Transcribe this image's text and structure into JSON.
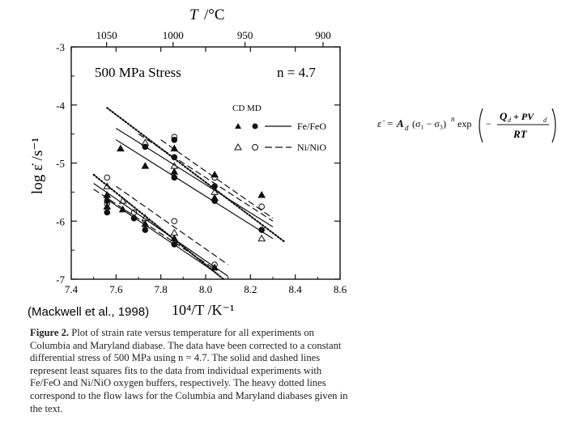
{
  "top_axis": {
    "label_T": "T",
    "label_unit": "/°C",
    "ticks": [
      "1050",
      "1000",
      "950",
      "900"
    ],
    "tick_values": [
      1050,
      1000,
      950,
      900
    ]
  },
  "chart_data": {
    "type": "scatter",
    "title": "500 MPa Stress",
    "annotation": "n = 4.7",
    "xlabel": "10⁴/T /K⁻¹",
    "ylabel": "log ε̇ /s⁻¹",
    "xlim": [
      7.4,
      8.6
    ],
    "ylim": [
      -7,
      -3
    ],
    "x_ticks": [
      "7.4",
      "7.6",
      "7.8",
      "8.0",
      "8.2",
      "8.4",
      "8.6"
    ],
    "y_ticks": [
      "-3",
      "-4",
      "-5",
      "-6",
      "-7"
    ],
    "legend": {
      "header": "CD MD",
      "entries": [
        "Fe/FeO",
        "Ni/NiO"
      ]
    },
    "series": [
      {
        "name": "Fe/FeO",
        "marker": "filled",
        "points": [
          [
            7.62,
            -4.75
          ],
          [
            7.73,
            -4.72
          ],
          [
            7.73,
            -5.05
          ],
          [
            7.86,
            -4.6
          ],
          [
            7.86,
            -4.75
          ],
          [
            7.86,
            -4.9
          ],
          [
            7.86,
            -5.15
          ],
          [
            7.86,
            -5.25
          ],
          [
            8.04,
            -5.2
          ],
          [
            8.04,
            -5.4
          ],
          [
            8.04,
            -5.6
          ],
          [
            8.04,
            -5.65
          ],
          [
            8.25,
            -5.55
          ],
          [
            8.25,
            -6.15
          ],
          [
            7.56,
            -5.55
          ],
          [
            7.56,
            -5.65
          ],
          [
            7.56,
            -5.75
          ],
          [
            7.56,
            -5.85
          ],
          [
            7.63,
            -5.8
          ],
          [
            7.68,
            -5.95
          ],
          [
            7.73,
            -6.05
          ],
          [
            7.73,
            -6.15
          ],
          [
            7.86,
            -6.3
          ],
          [
            7.86,
            -6.4
          ],
          [
            8.04,
            -6.8
          ]
        ]
      },
      {
        "name": "Ni/NiO",
        "marker": "open",
        "points": [
          [
            7.73,
            -4.65
          ],
          [
            7.86,
            -4.55
          ],
          [
            7.86,
            -5.05
          ],
          [
            8.04,
            -5.25
          ],
          [
            8.04,
            -5.5
          ],
          [
            8.25,
            -5.75
          ],
          [
            8.25,
            -6.3
          ],
          [
            7.56,
            -5.25
          ],
          [
            7.56,
            -5.4
          ],
          [
            7.56,
            -5.7
          ],
          [
            7.63,
            -5.65
          ],
          [
            7.68,
            -5.85
          ],
          [
            7.73,
            -5.95
          ],
          [
            7.86,
            -6.0
          ],
          [
            7.86,
            -6.2
          ],
          [
            8.04,
            -6.75
          ]
        ]
      }
    ],
    "flow_law_lines": [
      {
        "style": "dotted",
        "x": [
          7.56,
          8.35
        ],
        "y": [
          -4.05,
          -6.35
        ]
      },
      {
        "style": "dotted",
        "x": [
          7.5,
          8.08
        ],
        "y": [
          -5.2,
          -7.0
        ]
      }
    ],
    "fit_lines": [
      {
        "style": "solid",
        "x": [
          7.6,
          8.3
        ],
        "y": [
          -4.4,
          -6.1
        ]
      },
      {
        "style": "solid",
        "x": [
          7.6,
          8.3
        ],
        "y": [
          -4.6,
          -6.3
        ]
      },
      {
        "style": "dashed",
        "x": [
          7.7,
          8.3
        ],
        "y": [
          -4.5,
          -6.0
        ]
      },
      {
        "style": "dashed",
        "x": [
          7.8,
          8.3
        ],
        "y": [
          -4.6,
          -5.95
        ]
      },
      {
        "style": "solid",
        "x": [
          7.5,
          8.1
        ],
        "y": [
          -5.35,
          -6.95
        ]
      },
      {
        "style": "dashed",
        "x": [
          7.5,
          8.05
        ],
        "y": [
          -5.45,
          -6.85
        ]
      },
      {
        "style": "solid",
        "x": [
          7.55,
          8.05
        ],
        "y": [
          -5.6,
          -6.9
        ]
      },
      {
        "style": "dashed",
        "x": [
          7.6,
          8.1
        ],
        "y": [
          -5.4,
          -6.75
        ]
      }
    ]
  },
  "equation": {
    "lhs": "ε̇",
    "eq": "=",
    "pre": "A",
    "pre_sub": "d",
    "stress": "(σ₁ − σ₃)",
    "exp_n": "n",
    "exp": "exp",
    "minus": "−",
    "numerator": "Q",
    "num_sub": "d",
    "num_plus": "+ PV",
    "num_sub2": "d",
    "denominator": "RT"
  },
  "credit": "(Mackwell et al., 1998)",
  "caption": {
    "label": "Figure 2.",
    "text": "Plot of strain rate versus temperature for all experiments on Columbia and Maryland diabase. The data have been corrected to a constant differential stress of 500 MPa using n = 4.7. The solid and dashed lines represent least squares fits to the data from individual experiments with Fe/FeO and Ni/NiO oxygen buffers, respectively. The heavy dotted lines correspond to the flow laws for the Columbia and Maryland diabases given in the text."
  }
}
